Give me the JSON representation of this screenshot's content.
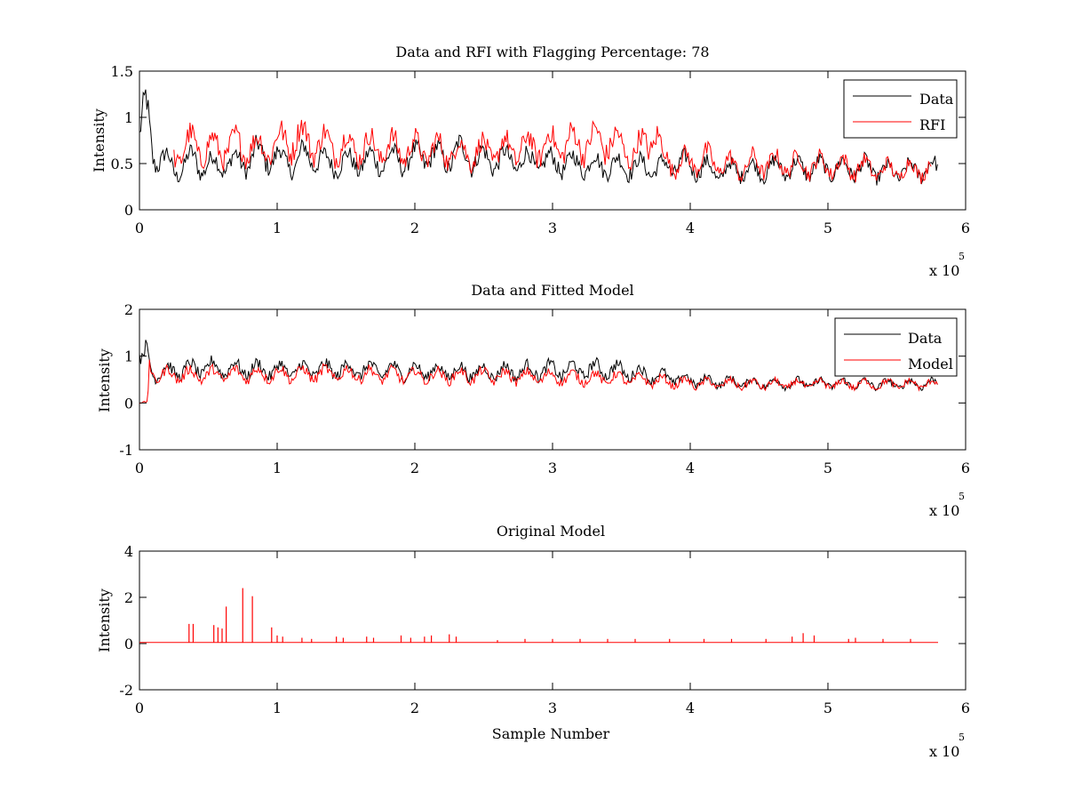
{
  "chart_data": [
    {
      "type": "line",
      "title": "Data and RFI with Flagging Percentage: 78",
      "xlabel": "",
      "ylabel": "Intensity",
      "xlim": [
        0,
        600000
      ],
      "ylim": [
        0,
        1.5
      ],
      "x_ticks": [
        0,
        1,
        2,
        3,
        4,
        5,
        6
      ],
      "y_ticks": [
        0,
        0.5,
        1,
        1.5
      ],
      "x_multiplier": "x 10",
      "x_multiplier_exp": "5",
      "legend_position": "top-right",
      "grid": false,
      "series": [
        {
          "name": "Data",
          "color": "#000000",
          "x": [
            0,
            5000,
            10000,
            20000,
            25000,
            40000,
            45000,
            80000,
            85000,
            115000,
            120000,
            130000,
            135000,
            200000,
            205000,
            225000,
            230000,
            235000,
            240000,
            240000,
            245000,
            380000,
            390000,
            410000,
            420000,
            440000,
            445000,
            460000,
            530000,
            540000,
            580000
          ],
          "y": [
            0.8,
            1.05,
            0.6,
            0.52,
            0.42,
            0.55,
            0.47,
            0.53,
            0.6,
            0.5,
            0.6,
            0.55,
            0.5,
            0.55,
            0.6,
            0.55,
            0.62,
            0.6,
            0.65,
            0.55,
            0.55,
            0.45,
            0.5,
            0.45,
            0.4,
            0.45,
            0.42,
            0.45,
            0.45,
            0.4,
            0.45
          ]
        },
        {
          "name": "RFI",
          "color": "#ff0000",
          "x": [
            25000,
            40000,
            45000,
            80000,
            85000,
            115000,
            135000,
            200000,
            245000,
            300000,
            340000,
            360000,
            375000,
            380000,
            390000,
            410000,
            420000,
            440000,
            445000,
            460000,
            500000,
            530000,
            540000,
            575000
          ],
          "y": [
            0.6,
            0.72,
            0.65,
            0.7,
            0.65,
            0.78,
            0.7,
            0.65,
            0.62,
            0.7,
            0.75,
            0.6,
            0.85,
            0.55,
            0.5,
            0.55,
            0.5,
            0.45,
            0.5,
            0.5,
            0.48,
            0.45,
            0.42,
            0.45
          ]
        }
      ]
    },
    {
      "type": "line",
      "title": "Data and Fitted Model",
      "xlabel": "",
      "ylabel": "Intensity",
      "xlim": [
        0,
        600000
      ],
      "ylim": [
        -1,
        2
      ],
      "x_ticks": [
        0,
        1,
        2,
        3,
        4,
        5,
        6
      ],
      "y_ticks": [
        -1,
        0,
        1,
        2
      ],
      "x_multiplier": "x 10",
      "x_multiplier_exp": "5",
      "legend_position": "top-right",
      "grid": false,
      "series": [
        {
          "name": "Data",
          "color": "#000000",
          "x": [
            0,
            5000,
            10000,
            50000,
            100000,
            150000,
            200000,
            250000,
            300000,
            340000,
            370000,
            400000,
            450000,
            500000,
            550000,
            580000
          ],
          "y": [
            0.9,
            1.0,
            0.65,
            0.75,
            0.7,
            0.72,
            0.68,
            0.66,
            0.7,
            0.72,
            0.6,
            0.48,
            0.42,
            0.42,
            0.4,
            0.42
          ]
        },
        {
          "name": "Model",
          "color": "#ff0000",
          "x": [
            0,
            6000,
            7000,
            10000,
            50000,
            100000,
            150000,
            200000,
            250000,
            300000,
            350000,
            400000,
            450000,
            500000,
            550000,
            580000
          ],
          "y": [
            0.0,
            0.0,
            0.85,
            0.6,
            0.6,
            0.62,
            0.62,
            0.58,
            0.58,
            0.55,
            0.52,
            0.42,
            0.4,
            0.4,
            0.4,
            0.4
          ]
        }
      ]
    },
    {
      "type": "line",
      "title": "Original Model",
      "xlabel": "Sample Number",
      "ylabel": "Intensity",
      "xlim": [
        0,
        600000
      ],
      "ylim": [
        -2,
        4
      ],
      "x_ticks": [
        0,
        1,
        2,
        3,
        4,
        5,
        6
      ],
      "y_ticks": [
        -2,
        0,
        2,
        4
      ],
      "x_multiplier": "x 10",
      "x_multiplier_exp": "5",
      "grid": false,
      "series": [
        {
          "color": "#ff0000",
          "baseline": 0.05,
          "x_end": 580000,
          "spikes": [
            [
              36000,
              0.85
            ],
            [
              39000,
              0.85
            ],
            [
              54000,
              0.8
            ],
            [
              57000,
              0.7
            ],
            [
              60000,
              0.65
            ],
            [
              63000,
              1.6
            ],
            [
              75000,
              2.4
            ],
            [
              82000,
              2.05
            ],
            [
              96000,
              0.7
            ],
            [
              100000,
              0.35
            ],
            [
              104000,
              0.3
            ],
            [
              118000,
              0.25
            ],
            [
              125000,
              0.2
            ],
            [
              143000,
              0.3
            ],
            [
              148000,
              0.25
            ],
            [
              165000,
              0.3
            ],
            [
              170000,
              0.25
            ],
            [
              190000,
              0.35
            ],
            [
              197000,
              0.25
            ],
            [
              207000,
              0.3
            ],
            [
              212000,
              0.35
            ],
            [
              225000,
              0.4
            ],
            [
              230000,
              0.3
            ],
            [
              260000,
              0.15
            ],
            [
              280000,
              0.2
            ],
            [
              300000,
              0.2
            ],
            [
              320000,
              0.2
            ],
            [
              340000,
              0.2
            ],
            [
              360000,
              0.2
            ],
            [
              385000,
              0.2
            ],
            [
              410000,
              0.2
            ],
            [
              430000,
              0.2
            ],
            [
              455000,
              0.2
            ],
            [
              474000,
              0.3
            ],
            [
              482000,
              0.45
            ],
            [
              490000,
              0.35
            ],
            [
              515000,
              0.2
            ],
            [
              520000,
              0.25
            ],
            [
              540000,
              0.2
            ],
            [
              560000,
              0.2
            ]
          ]
        }
      ]
    }
  ]
}
